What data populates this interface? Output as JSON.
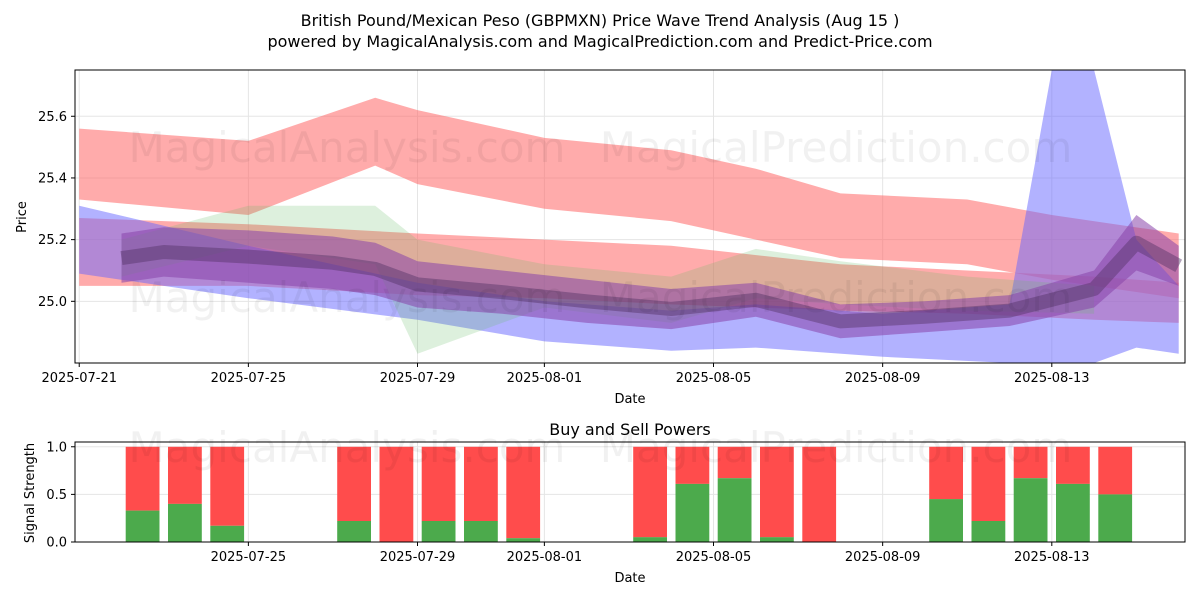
{
  "header": {
    "title_line1": "British Pound/Mexican Peso (GBPMXN) Price Wave Trend Analysis (Aug 15 )",
    "title_line2": "powered by MagicalAnalysis.com and MagicalPrediction.com and Predict-Price.com"
  },
  "watermarks": {
    "left": "MagicalAnalysis.com",
    "right": "MagicalPrediction.com"
  },
  "colors": {
    "red_band": "#ff6666",
    "blue_band": "#6666ff",
    "green_band": "#66bb66",
    "purple_core": "#8844aa",
    "buy": "#4caa4c",
    "sell": "#ff4c4c"
  },
  "chart_data": [
    {
      "type": "area",
      "title": "",
      "xlabel": "Date",
      "ylabel": "Price",
      "ylim": [
        24.8,
        25.75
      ],
      "xlim": [
        "2025-07-21",
        "2025-08-16"
      ],
      "grid": true,
      "x_ticks": [
        "2025-07-21",
        "2025-07-25",
        "2025-07-29",
        "2025-08-01",
        "2025-08-05",
        "2025-08-09",
        "2025-08-13"
      ],
      "y_ticks": [
        "25.0",
        "25.2",
        "25.4",
        "25.6"
      ],
      "series": [
        {
          "color": "red",
          "x": [
            "2025-07-21",
            "2025-07-25",
            "2025-07-28",
            "2025-07-29",
            "2025-08-01",
            "2025-08-04",
            "2025-08-06",
            "2025-08-08",
            "2025-08-11",
            "2025-08-13",
            "2025-08-16"
          ],
          "upper": [
            25.56,
            25.52,
            25.66,
            25.62,
            25.53,
            25.49,
            25.43,
            25.35,
            25.33,
            25.28,
            25.22
          ],
          "lower": [
            25.33,
            25.28,
            25.44,
            25.38,
            25.3,
            25.26,
            25.2,
            25.14,
            25.12,
            25.07,
            25.01
          ]
        },
        {
          "color": "red",
          "x": [
            "2025-07-21",
            "2025-07-25",
            "2025-07-29",
            "2025-08-01",
            "2025-08-04",
            "2025-08-08",
            "2025-08-11",
            "2025-08-14",
            "2025-08-16"
          ],
          "upper": [
            25.27,
            25.25,
            25.22,
            25.2,
            25.18,
            25.12,
            25.1,
            25.08,
            25.06
          ],
          "lower": [
            25.05,
            25.05,
            25.02,
            25.01,
            24.99,
            24.97,
            24.96,
            24.94,
            24.93
          ]
        },
        {
          "color": "blue",
          "x": [
            "2025-07-21",
            "2025-07-25",
            "2025-07-29",
            "2025-08-01",
            "2025-08-04",
            "2025-08-06",
            "2025-08-09",
            "2025-08-12",
            "2025-08-13",
            "2025-08-14",
            "2025-08-15",
            "2025-08-16"
          ],
          "upper": [
            25.31,
            25.18,
            25.06,
            25.0,
            24.97,
            24.99,
            24.96,
            24.99,
            25.75,
            25.75,
            25.2,
            25.05
          ],
          "lower": [
            25.09,
            25.01,
            24.94,
            24.87,
            24.84,
            24.85,
            24.82,
            24.8,
            24.8,
            24.8,
            24.85,
            24.83
          ]
        },
        {
          "color": "green",
          "x": [
            "2025-07-22",
            "2025-07-25",
            "2025-07-28",
            "2025-07-29",
            "2025-08-01",
            "2025-08-04",
            "2025-08-06",
            "2025-08-08",
            "2025-08-11",
            "2025-08-14"
          ],
          "upper": [
            25.2,
            25.31,
            25.31,
            25.2,
            25.12,
            25.08,
            25.17,
            25.13,
            25.08,
            25.05
          ],
          "lower": [
            25.08,
            25.18,
            25.12,
            24.83,
            24.98,
            24.93,
            25.01,
            24.99,
            24.97,
            24.96
          ]
        },
        {
          "color": "purple",
          "x": [
            "2025-07-22",
            "2025-07-23",
            "2025-07-25",
            "2025-07-27",
            "2025-07-28",
            "2025-07-29",
            "2025-07-31",
            "2025-08-02",
            "2025-08-04",
            "2025-08-06",
            "2025-08-08",
            "2025-08-10",
            "2025-08-12",
            "2025-08-14",
            "2025-08-15",
            "2025-08-16"
          ],
          "upper": [
            25.22,
            25.24,
            25.23,
            25.21,
            25.19,
            25.13,
            25.1,
            25.07,
            25.04,
            25.06,
            24.99,
            25.0,
            25.02,
            25.1,
            25.28,
            25.18
          ],
          "lower": [
            25.06,
            25.08,
            25.06,
            25.04,
            25.02,
            24.98,
            24.96,
            24.93,
            24.91,
            24.95,
            24.88,
            24.9,
            24.92,
            24.98,
            25.1,
            25.05
          ]
        }
      ]
    },
    {
      "type": "bar",
      "title": "Buy and Sell Powers",
      "xlabel": "Date",
      "ylabel": "Signal Strength",
      "ylim": [
        0,
        1.05
      ],
      "grid": true,
      "x_ticks": [
        "2025-07-25",
        "2025-07-29",
        "2025-08-01",
        "2025-08-05",
        "2025-08-09",
        "2025-08-13"
      ],
      "y_ticks": [
        "0.0",
        "0.5",
        "1.0"
      ],
      "categories": [
        "2025-07-22",
        "2025-07-23",
        "2025-07-24",
        "2025-07-27",
        "2025-07-28",
        "2025-07-29",
        "2025-07-30",
        "2025-07-31",
        "2025-08-03",
        "2025-08-04",
        "2025-08-05",
        "2025-08-06",
        "2025-08-07",
        "2025-08-10",
        "2025-08-11",
        "2025-08-12",
        "2025-08-13",
        "2025-08-14"
      ],
      "series": [
        {
          "name": "Buy",
          "values": [
            0.33,
            0.4,
            0.17,
            0.22,
            0.0,
            0.22,
            0.22,
            0.04,
            0.05,
            0.61,
            0.67,
            0.05,
            0.0,
            0.45,
            0.22,
            0.67,
            0.61,
            0.5
          ]
        },
        {
          "name": "Sell",
          "values": [
            0.67,
            0.6,
            0.83,
            0.78,
            1.0,
            0.78,
            0.78,
            0.96,
            0.95,
            0.39,
            0.33,
            0.95,
            1.0,
            0.55,
            0.78,
            0.33,
            0.39,
            0.5
          ]
        }
      ]
    }
  ]
}
